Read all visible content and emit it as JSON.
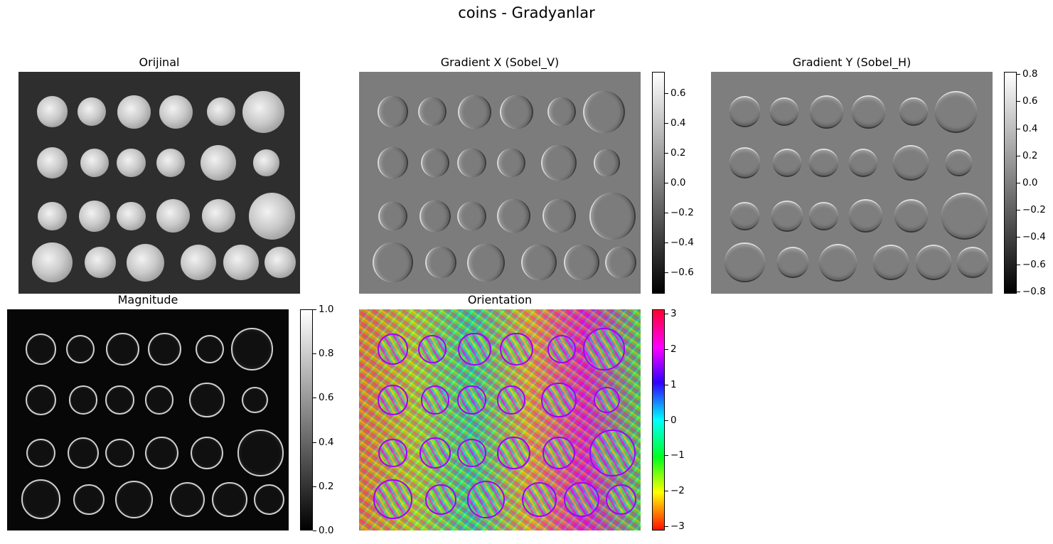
{
  "figure_title": "coins - Gradyanlar",
  "panels": {
    "original": {
      "title": "Orijinal"
    },
    "gradient_x": {
      "title": "Gradient X (Sobel_V)"
    },
    "gradient_y": {
      "title": "Gradient Y (Sobel_H)"
    },
    "magnitude": {
      "title": "Magnitude"
    },
    "orientation": {
      "title": "Orientation"
    }
  },
  "colorbars": {
    "gradient_x": {
      "ticks": [
        "0.6",
        "0.4",
        "0.2",
        "0.0",
        "−0.2",
        "−0.4",
        "−0.6"
      ],
      "range": [
        -0.75,
        0.75
      ],
      "cmap": "gray"
    },
    "gradient_y": {
      "ticks": [
        "0.8",
        "0.6",
        "0.4",
        "0.2",
        "0.0",
        "−0.2",
        "−0.4",
        "−0.6",
        "−0.8"
      ],
      "range": [
        -0.82,
        0.82
      ],
      "cmap": "gray"
    },
    "magnitude": {
      "ticks": [
        "1.0",
        "0.8",
        "0.6",
        "0.4",
        "0.2",
        "0.0"
      ],
      "range": [
        0,
        1
      ],
      "cmap": "gray"
    },
    "orientation": {
      "ticks": [
        "3",
        "2",
        "1",
        "0",
        "−1",
        "−2",
        "−3"
      ],
      "range": [
        -3.14,
        3.14
      ],
      "cmap": "hsv"
    }
  },
  "colors": {
    "background": "#ffffff",
    "text": "#000000"
  }
}
